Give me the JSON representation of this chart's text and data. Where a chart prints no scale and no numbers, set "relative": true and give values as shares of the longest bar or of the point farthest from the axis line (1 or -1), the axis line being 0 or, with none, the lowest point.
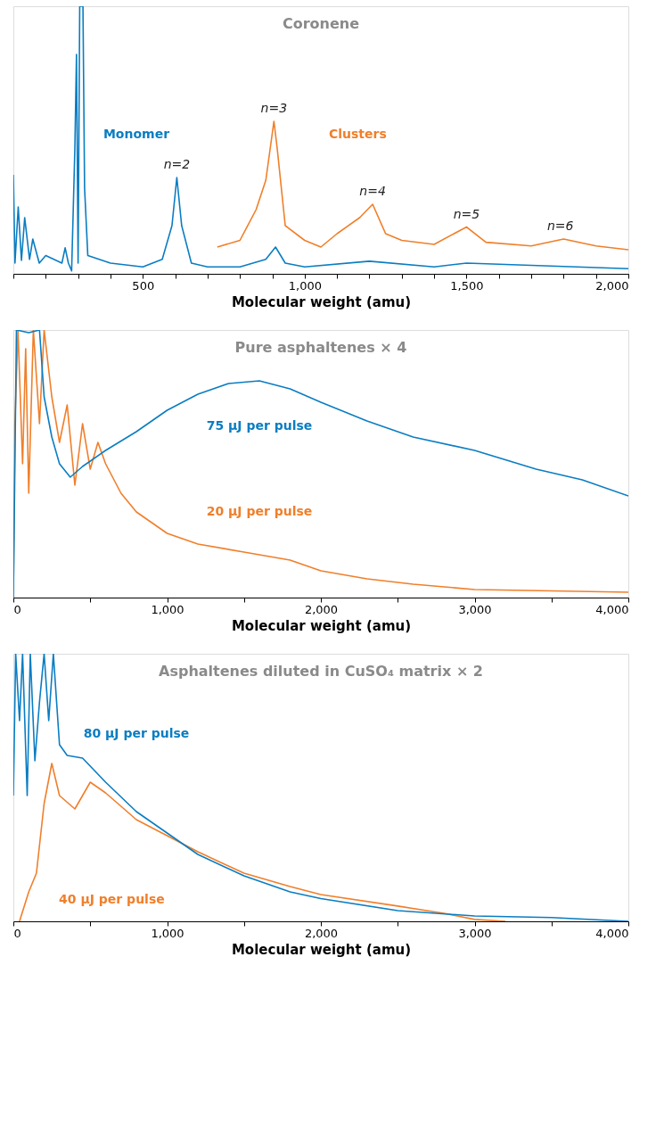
{
  "chart_data": [
    {
      "type": "line",
      "title": "Coronene",
      "xlabel": "Molecular weight (amu)",
      "relative": true,
      "tick_labels": "x",
      "xlim": [
        100,
        2000
      ],
      "xticks": [
        {
          "value": 100,
          "label": null
        },
        {
          "value": 200,
          "label": null
        },
        {
          "value": 300,
          "label": null
        },
        {
          "value": 400,
          "label": null
        },
        500,
        {
          "value": 600,
          "label": null
        },
        {
          "value": 700,
          "label": null
        },
        {
          "value": 800,
          "label": null
        },
        {
          "value": 900,
          "label": null
        },
        {
          "value": 1000,
          "label": "1,000"
        },
        {
          "value": 1100,
          "label": null
        },
        {
          "value": 1200,
          "label": null
        },
        {
          "value": 1300,
          "label": null
        },
        {
          "value": 1400,
          "label": null
        },
        {
          "value": 1500,
          "label": "1,500"
        },
        {
          "value": 1600,
          "label": null
        },
        {
          "value": 1700,
          "label": null
        },
        {
          "value": 1800,
          "label": null
        },
        {
          "value": 1900,
          "label": null
        },
        {
          "value": 2000,
          "label": "2,000"
        }
      ],
      "series": [
        {
          "name": "Monomer",
          "color": "#0a7dc2",
          "x": [
            100,
            105,
            115,
            125,
            135,
            150,
            160,
            180,
            200,
            250,
            260,
            270,
            280,
            290,
            295,
            300,
            305,
            315,
            320,
            330,
            400,
            500,
            560,
            590,
            605,
            620,
            650,
            700,
            800,
            880,
            910,
            940,
            1000,
            1200,
            1400,
            1500,
            2000
          ],
          "values": [
            0.37,
            0.04,
            0.25,
            0.05,
            0.21,
            0.054,
            0.13,
            0.04,
            0.068,
            0.04,
            0.097,
            0.04,
            0.011,
            0.47,
            0.82,
            0.04,
            1,
            1,
            0.32,
            0.068,
            0.04,
            0.026,
            0.054,
            0.18,
            0.36,
            0.18,
            0.04,
            0.026,
            0.026,
            0.054,
            0.1,
            0.04,
            0.026,
            0.047,
            0.026,
            0.04,
            0.019
          ]
        },
        {
          "name": "Clusters",
          "color": "#f07f2a",
          "x": [
            730,
            800,
            850,
            880,
            905,
            915,
            940,
            1000,
            1050,
            1100,
            1170,
            1210,
            1250,
            1300,
            1400,
            1500,
            1560,
            1700,
            1800,
            1900,
            2000
          ],
          "values": [
            0.1,
            0.125,
            0.24,
            0.35,
            0.57,
            0.47,
            0.18,
            0.125,
            0.1,
            0.15,
            0.21,
            0.26,
            0.15,
            0.125,
            0.11,
            0.175,
            0.118,
            0.104,
            0.13,
            0.104,
            0.09
          ]
        }
      ],
      "annotations": [
        {
          "text": "n=2",
          "x": 605,
          "y": 0.36
        },
        {
          "text": "n=3",
          "x": 905,
          "y": 0.57
        },
        {
          "text": "n=4",
          "x": 1210,
          "y": 0.26
        },
        {
          "text": "n=5",
          "x": 1500,
          "y": 0.175
        },
        {
          "text": "n=6",
          "x": 1790,
          "y": 0.13
        }
      ]
    },
    {
      "type": "line",
      "title": "Pure asphaltenes × 4",
      "xlabel": "Molecular weight (amu)",
      "relative": true,
      "tick_labels": "x",
      "xlim": [
        0,
        4000
      ],
      "xticks": [
        0,
        {
          "value": 500,
          "label": null
        },
        {
          "value": 1000,
          "label": "1,000"
        },
        {
          "value": 1500,
          "label": null
        },
        {
          "value": 2000,
          "label": "2,000"
        },
        {
          "value": 2500,
          "label": null
        },
        {
          "value": 3000,
          "label": "3,000"
        },
        {
          "value": 3500,
          "label": null
        },
        {
          "value": 4000,
          "label": "4,000"
        }
      ],
      "series": [
        {
          "name": "20 µJ per pulse",
          "color": "#f07f2a",
          "x": [
            0,
            10,
            30,
            60,
            80,
            100,
            130,
            170,
            200,
            250,
            300,
            350,
            400,
            450,
            500,
            550,
            600,
            700,
            800,
            1000,
            1200,
            1500,
            1800,
            2000,
            2300,
            2600,
            3000,
            3500,
            4000
          ],
          "values": [
            0,
            0.65,
            1,
            0.5,
            0.93,
            0.39,
            1,
            0.65,
            1,
            0.75,
            0.58,
            0.72,
            0.42,
            0.65,
            0.48,
            0.58,
            0.5,
            0.39,
            0.32,
            0.24,
            0.2,
            0.17,
            0.14,
            0.1,
            0.07,
            0.05,
            0.03,
            0.025,
            0.02
          ]
        },
        {
          "name": "75 µJ per pulse",
          "color": "#0a7dc2",
          "x": [
            0,
            20,
            100,
            170,
            200,
            250,
            300,
            370,
            450,
            600,
            800,
            1000,
            1200,
            1400,
            1600,
            1800,
            2000,
            2300,
            2600,
            3000,
            3400,
            3700,
            4000
          ],
          "values": [
            0,
            1,
            0.99,
            1,
            0.75,
            0.6,
            0.5,
            0.45,
            0.49,
            0.55,
            0.62,
            0.7,
            0.76,
            0.8,
            0.81,
            0.78,
            0.73,
            0.66,
            0.6,
            0.55,
            0.48,
            0.44,
            0.38
          ]
        }
      ]
    },
    {
      "type": "line",
      "title": "Asphaltenes diluted in CuSO₄ matrix × 2",
      "xlabel": "Molecular weight (amu)",
      "relative": true,
      "tick_labels": "x",
      "xlim": [
        0,
        4000
      ],
      "xticks": [
        0,
        {
          "value": 500,
          "label": null
        },
        {
          "value": 1000,
          "label": "1,000"
        },
        {
          "value": 1500,
          "label": null
        },
        {
          "value": 2000,
          "label": "2,000"
        },
        {
          "value": 2500,
          "label": null
        },
        {
          "value": 3000,
          "label": "3,000"
        },
        {
          "value": 3500,
          "label": null
        },
        {
          "value": 4000,
          "label": "4,000"
        }
      ],
      "series": [
        {
          "name": "40 µJ per pulse",
          "color": "#f07f2a",
          "x": [
            40,
            100,
            150,
            200,
            250,
            300,
            400,
            500,
            600,
            800,
            1000,
            1200,
            1500,
            1800,
            2000,
            2500,
            2800,
            3000,
            3200
          ],
          "values": [
            0,
            0.11,
            0.18,
            0.44,
            0.59,
            0.47,
            0.42,
            0.52,
            0.48,
            0.38,
            0.32,
            0.26,
            0.18,
            0.13,
            0.1,
            0.057,
            0.03,
            0.007,
            0
          ]
        },
        {
          "name": "80 µJ per pulse",
          "color": "#0a7dc2",
          "x": [
            0,
            15,
            40,
            60,
            90,
            110,
            140,
            170,
            200,
            230,
            260,
            300,
            350,
            450,
            500,
            600,
            800,
            1000,
            1200,
            1500,
            1800,
            2000,
            2500,
            3000,
            3500,
            4000
          ],
          "values": [
            0.47,
            1,
            0.75,
            1,
            0.47,
            1,
            0.6,
            0.82,
            1,
            0.75,
            1,
            0.66,
            0.62,
            0.61,
            0.58,
            0.52,
            0.41,
            0.33,
            0.25,
            0.17,
            0.11,
            0.085,
            0.04,
            0.02,
            0.014,
            0
          ]
        }
      ]
    }
  ]
}
